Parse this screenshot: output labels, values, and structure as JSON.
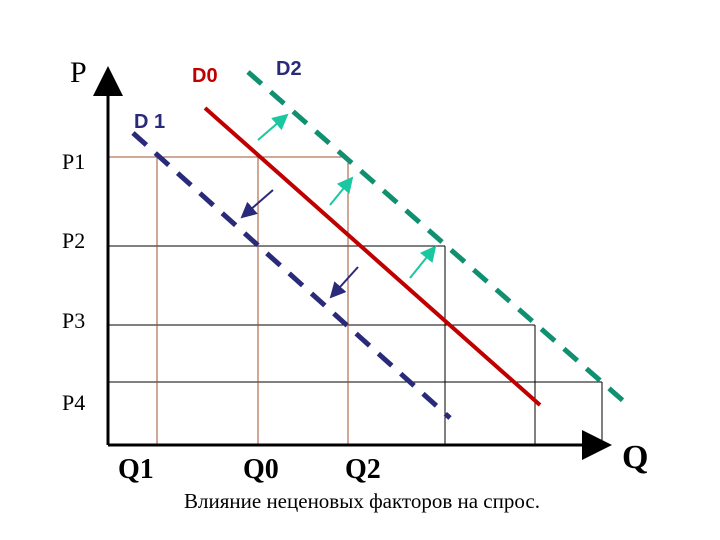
{
  "axes": {
    "y_label": "P",
    "x_label": "Q"
  },
  "curves": {
    "d0": "D0",
    "d1": "D 1",
    "d2": "D2"
  },
  "prices": [
    "P1",
    "P2",
    "P3",
    "P4"
  ],
  "quantities": [
    "Q1",
    "Q0",
    "Q2"
  ],
  "caption": "Влияние неценовых факторов на спрос."
}
